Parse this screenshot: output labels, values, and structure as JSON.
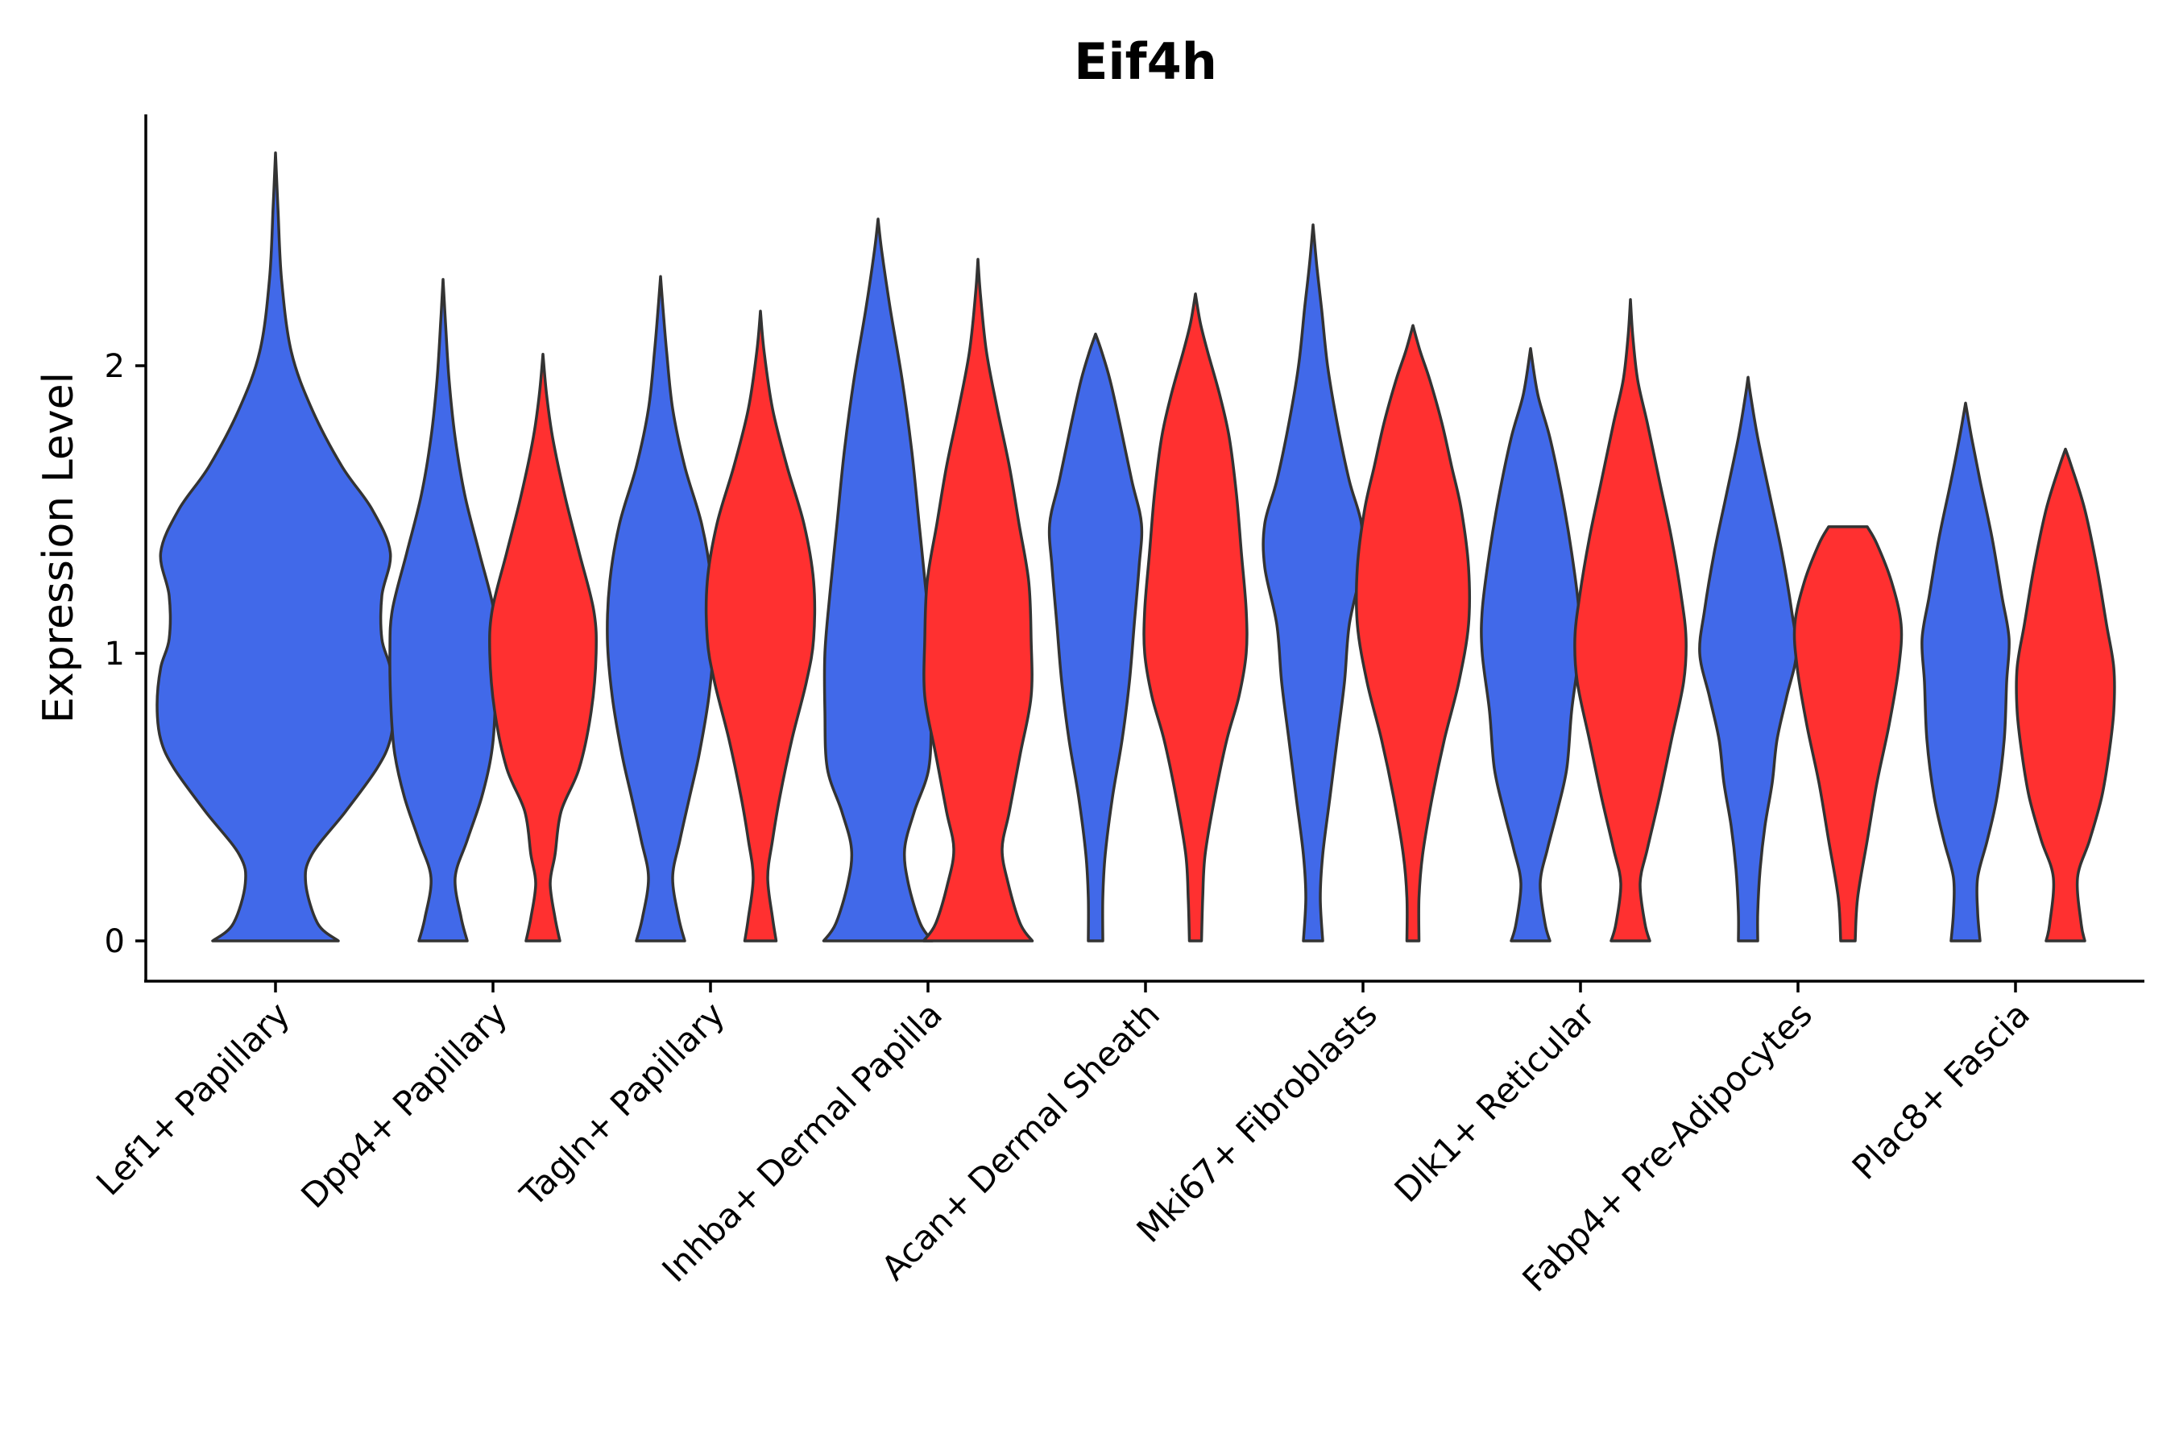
{
  "chart_data": {
    "type": "violin",
    "title": "Eif4h",
    "ylabel": "Expression Level",
    "xlabel": "",
    "ylim": [
      -0.14,
      2.9
    ],
    "yticks": [
      0,
      1,
      2
    ],
    "grid": false,
    "legend": "none",
    "colors": {
      "blue": "#4169E9",
      "red": "#FF3030"
    },
    "categories": [
      "Lef1+ Papillary",
      "Dpp4+ Papillary",
      "Tagln+ Papillary",
      "Inhba+ Dermal Papilla",
      "Acan+ Dermal Sheath",
      "Mki67+ Fibroblasts",
      "Dlk1+ Reticular",
      "Fabp4+ Pre-Adipocytes",
      "Plac8+ Fascia"
    ],
    "violins": [
      {
        "category": 0,
        "group": "blue",
        "ymax": 2.74,
        "width": [
          [
            0,
            0.52
          ],
          [
            0.06,
            0.35
          ],
          [
            0.2,
            0.25
          ],
          [
            0.3,
            0.3
          ],
          [
            0.45,
            0.58
          ],
          [
            0.6,
            0.84
          ],
          [
            0.7,
            0.95
          ],
          [
            0.82,
            0.98
          ],
          [
            0.95,
            0.95
          ],
          [
            1.05,
            0.88
          ],
          [
            1.2,
            0.88
          ],
          [
            1.35,
            0.95
          ],
          [
            1.5,
            0.8
          ],
          [
            1.65,
            0.55
          ],
          [
            1.85,
            0.3
          ],
          [
            2.05,
            0.13
          ],
          [
            2.3,
            0.05
          ],
          [
            2.55,
            0.02
          ],
          [
            2.74,
            0.0
          ]
        ]
      },
      {
        "category": 1,
        "group": "blue",
        "ymax": 2.3,
        "width": [
          [
            0,
            0.2
          ],
          [
            0.08,
            0.15
          ],
          [
            0.22,
            0.1
          ],
          [
            0.35,
            0.2
          ],
          [
            0.5,
            0.32
          ],
          [
            0.65,
            0.4
          ],
          [
            0.8,
            0.43
          ],
          [
            1.0,
            0.44
          ],
          [
            1.15,
            0.42
          ],
          [
            1.35,
            0.3
          ],
          [
            1.55,
            0.18
          ],
          [
            1.75,
            0.1
          ],
          [
            1.95,
            0.05
          ],
          [
            2.15,
            0.02
          ],
          [
            2.3,
            0.0
          ]
        ]
      },
      {
        "category": 1,
        "group": "red",
        "ymax": 2.04,
        "width": [
          [
            0,
            0.14
          ],
          [
            0.08,
            0.1
          ],
          [
            0.2,
            0.06
          ],
          [
            0.3,
            0.1
          ],
          [
            0.45,
            0.15
          ],
          [
            0.6,
            0.3
          ],
          [
            0.8,
            0.4
          ],
          [
            1.0,
            0.44
          ],
          [
            1.15,
            0.42
          ],
          [
            1.35,
            0.3
          ],
          [
            1.55,
            0.18
          ],
          [
            1.75,
            0.08
          ],
          [
            1.9,
            0.03
          ],
          [
            2.04,
            0.0
          ]
        ]
      },
      {
        "category": 2,
        "group": "blue",
        "ymax": 2.31,
        "width": [
          [
            0,
            0.2
          ],
          [
            0.08,
            0.15
          ],
          [
            0.22,
            0.1
          ],
          [
            0.35,
            0.16
          ],
          [
            0.5,
            0.24
          ],
          [
            0.65,
            0.32
          ],
          [
            0.85,
            0.4
          ],
          [
            1.05,
            0.44
          ],
          [
            1.25,
            0.42
          ],
          [
            1.45,
            0.34
          ],
          [
            1.65,
            0.2
          ],
          [
            1.85,
            0.1
          ],
          [
            2.05,
            0.05
          ],
          [
            2.2,
            0.02
          ],
          [
            2.31,
            0.0
          ]
        ]
      },
      {
        "category": 2,
        "group": "red",
        "ymax": 2.19,
        "width": [
          [
            0,
            0.13
          ],
          [
            0.08,
            0.1
          ],
          [
            0.22,
            0.06
          ],
          [
            0.35,
            0.1
          ],
          [
            0.5,
            0.16
          ],
          [
            0.7,
            0.26
          ],
          [
            0.9,
            0.38
          ],
          [
            1.05,
            0.44
          ],
          [
            1.25,
            0.44
          ],
          [
            1.45,
            0.36
          ],
          [
            1.65,
            0.22
          ],
          [
            1.85,
            0.1
          ],
          [
            2.05,
            0.03
          ],
          [
            2.19,
            0.0
          ]
        ]
      },
      {
        "category": 3,
        "group": "blue",
        "ymax": 2.51,
        "width": [
          [
            0,
            0.45
          ],
          [
            0.06,
            0.35
          ],
          [
            0.2,
            0.25
          ],
          [
            0.32,
            0.22
          ],
          [
            0.45,
            0.3
          ],
          [
            0.6,
            0.42
          ],
          [
            0.8,
            0.44
          ],
          [
            1.0,
            0.44
          ],
          [
            1.2,
            0.4
          ],
          [
            1.45,
            0.34
          ],
          [
            1.7,
            0.28
          ],
          [
            1.95,
            0.2
          ],
          [
            2.2,
            0.1
          ],
          [
            2.4,
            0.03
          ],
          [
            2.51,
            0.0
          ]
        ]
      },
      {
        "category": 3,
        "group": "red",
        "ymax": 2.37,
        "width": [
          [
            0,
            0.45
          ],
          [
            0.06,
            0.35
          ],
          [
            0.2,
            0.25
          ],
          [
            0.32,
            0.2
          ],
          [
            0.45,
            0.26
          ],
          [
            0.65,
            0.35
          ],
          [
            0.85,
            0.44
          ],
          [
            1.05,
            0.44
          ],
          [
            1.25,
            0.42
          ],
          [
            1.45,
            0.34
          ],
          [
            1.65,
            0.26
          ],
          [
            1.85,
            0.16
          ],
          [
            2.05,
            0.07
          ],
          [
            2.25,
            0.02
          ],
          [
            2.37,
            0.0
          ]
        ]
      },
      {
        "category": 4,
        "group": "blue",
        "ymax": 2.11,
        "width": [
          [
            0,
            0.06
          ],
          [
            0.15,
            0.06
          ],
          [
            0.3,
            0.08
          ],
          [
            0.5,
            0.14
          ],
          [
            0.7,
            0.22
          ],
          [
            0.9,
            0.28
          ],
          [
            1.1,
            0.32
          ],
          [
            1.3,
            0.36
          ],
          [
            1.45,
            0.38
          ],
          [
            1.6,
            0.3
          ],
          [
            1.8,
            0.2
          ],
          [
            1.95,
            0.12
          ],
          [
            2.05,
            0.05
          ],
          [
            2.11,
            0.0
          ]
        ]
      },
      {
        "category": 4,
        "group": "red",
        "ymax": 2.25,
        "width": [
          [
            0,
            0.05
          ],
          [
            0.15,
            0.06
          ],
          [
            0.3,
            0.08
          ],
          [
            0.5,
            0.16
          ],
          [
            0.7,
            0.26
          ],
          [
            0.85,
            0.36
          ],
          [
            1.0,
            0.42
          ],
          [
            1.15,
            0.42
          ],
          [
            1.35,
            0.38
          ],
          [
            1.55,
            0.34
          ],
          [
            1.75,
            0.28
          ],
          [
            1.9,
            0.2
          ],
          [
            2.05,
            0.1
          ],
          [
            2.15,
            0.04
          ],
          [
            2.25,
            0.0
          ]
        ]
      },
      {
        "category": 5,
        "group": "blue",
        "ymax": 2.49,
        "width": [
          [
            0,
            0.08
          ],
          [
            0.15,
            0.06
          ],
          [
            0.3,
            0.08
          ],
          [
            0.5,
            0.14
          ],
          [
            0.7,
            0.2
          ],
          [
            0.9,
            0.26
          ],
          [
            1.1,
            0.3
          ],
          [
            1.3,
            0.4
          ],
          [
            1.45,
            0.4
          ],
          [
            1.6,
            0.3
          ],
          [
            1.8,
            0.2
          ],
          [
            2.0,
            0.12
          ],
          [
            2.2,
            0.07
          ],
          [
            2.35,
            0.03
          ],
          [
            2.49,
            0.0
          ]
        ]
      },
      {
        "category": 5,
        "group": "red",
        "ymax": 2.14,
        "width": [
          [
            0,
            0.05
          ],
          [
            0.15,
            0.05
          ],
          [
            0.3,
            0.08
          ],
          [
            0.5,
            0.16
          ],
          [
            0.7,
            0.26
          ],
          [
            0.9,
            0.38
          ],
          [
            1.1,
            0.46
          ],
          [
            1.3,
            0.46
          ],
          [
            1.5,
            0.4
          ],
          [
            1.65,
            0.32
          ],
          [
            1.8,
            0.24
          ],
          [
            1.95,
            0.14
          ],
          [
            2.05,
            0.06
          ],
          [
            2.14,
            0.0
          ]
        ]
      },
      {
        "category": 6,
        "group": "blue",
        "ymax": 2.06,
        "width": [
          [
            0,
            0.16
          ],
          [
            0.06,
            0.12
          ],
          [
            0.2,
            0.08
          ],
          [
            0.32,
            0.14
          ],
          [
            0.45,
            0.22
          ],
          [
            0.6,
            0.3
          ],
          [
            0.8,
            0.34
          ],
          [
            1.0,
            0.4
          ],
          [
            1.15,
            0.4
          ],
          [
            1.35,
            0.34
          ],
          [
            1.55,
            0.26
          ],
          [
            1.75,
            0.16
          ],
          [
            1.9,
            0.06
          ],
          [
            2.06,
            0.0
          ]
        ]
      },
      {
        "category": 6,
        "group": "red",
        "ymax": 2.23,
        "width": [
          [
            0,
            0.16
          ],
          [
            0.06,
            0.12
          ],
          [
            0.2,
            0.08
          ],
          [
            0.32,
            0.14
          ],
          [
            0.5,
            0.24
          ],
          [
            0.7,
            0.34
          ],
          [
            0.9,
            0.44
          ],
          [
            1.05,
            0.46
          ],
          [
            1.2,
            0.42
          ],
          [
            1.4,
            0.34
          ],
          [
            1.6,
            0.24
          ],
          [
            1.8,
            0.14
          ],
          [
            1.95,
            0.06
          ],
          [
            2.1,
            0.02
          ],
          [
            2.23,
            0.0
          ]
        ]
      },
      {
        "category": 7,
        "group": "blue",
        "ymax": 1.96,
        "width": [
          [
            0,
            0.08
          ],
          [
            0.1,
            0.08
          ],
          [
            0.25,
            0.1
          ],
          [
            0.4,
            0.14
          ],
          [
            0.55,
            0.2
          ],
          [
            0.7,
            0.24
          ],
          [
            0.85,
            0.32
          ],
          [
            1.0,
            0.4
          ],
          [
            1.15,
            0.36
          ],
          [
            1.35,
            0.28
          ],
          [
            1.55,
            0.18
          ],
          [
            1.75,
            0.08
          ],
          [
            1.9,
            0.02
          ],
          [
            1.96,
            0.0
          ]
        ]
      },
      {
        "category": 7,
        "group": "red",
        "ymax": 1.44,
        "flatTop": 0.16,
        "width": [
          [
            0,
            0.06
          ],
          [
            0.15,
            0.08
          ],
          [
            0.35,
            0.16
          ],
          [
            0.55,
            0.24
          ],
          [
            0.75,
            0.34
          ],
          [
            0.95,
            0.42
          ],
          [
            1.1,
            0.44
          ],
          [
            1.25,
            0.36
          ],
          [
            1.38,
            0.24
          ],
          [
            1.44,
            0.16
          ]
        ]
      },
      {
        "category": 8,
        "group": "blue",
        "ymax": 1.87,
        "width": [
          [
            0,
            0.12
          ],
          [
            0.1,
            0.1
          ],
          [
            0.22,
            0.1
          ],
          [
            0.35,
            0.18
          ],
          [
            0.5,
            0.26
          ],
          [
            0.7,
            0.32
          ],
          [
            0.9,
            0.34
          ],
          [
            1.05,
            0.36
          ],
          [
            1.2,
            0.3
          ],
          [
            1.4,
            0.22
          ],
          [
            1.6,
            0.12
          ],
          [
            1.75,
            0.05
          ],
          [
            1.87,
            0.0
          ]
        ]
      },
      {
        "category": 8,
        "group": "red",
        "ymax": 1.71,
        "width": [
          [
            0,
            0.16
          ],
          [
            0.06,
            0.13
          ],
          [
            0.22,
            0.1
          ],
          [
            0.35,
            0.2
          ],
          [
            0.5,
            0.3
          ],
          [
            0.65,
            0.36
          ],
          [
            0.8,
            0.4
          ],
          [
            0.95,
            0.4
          ],
          [
            1.1,
            0.34
          ],
          [
            1.3,
            0.26
          ],
          [
            1.5,
            0.16
          ],
          [
            1.65,
            0.05
          ],
          [
            1.71,
            0.0
          ]
        ]
      }
    ]
  }
}
